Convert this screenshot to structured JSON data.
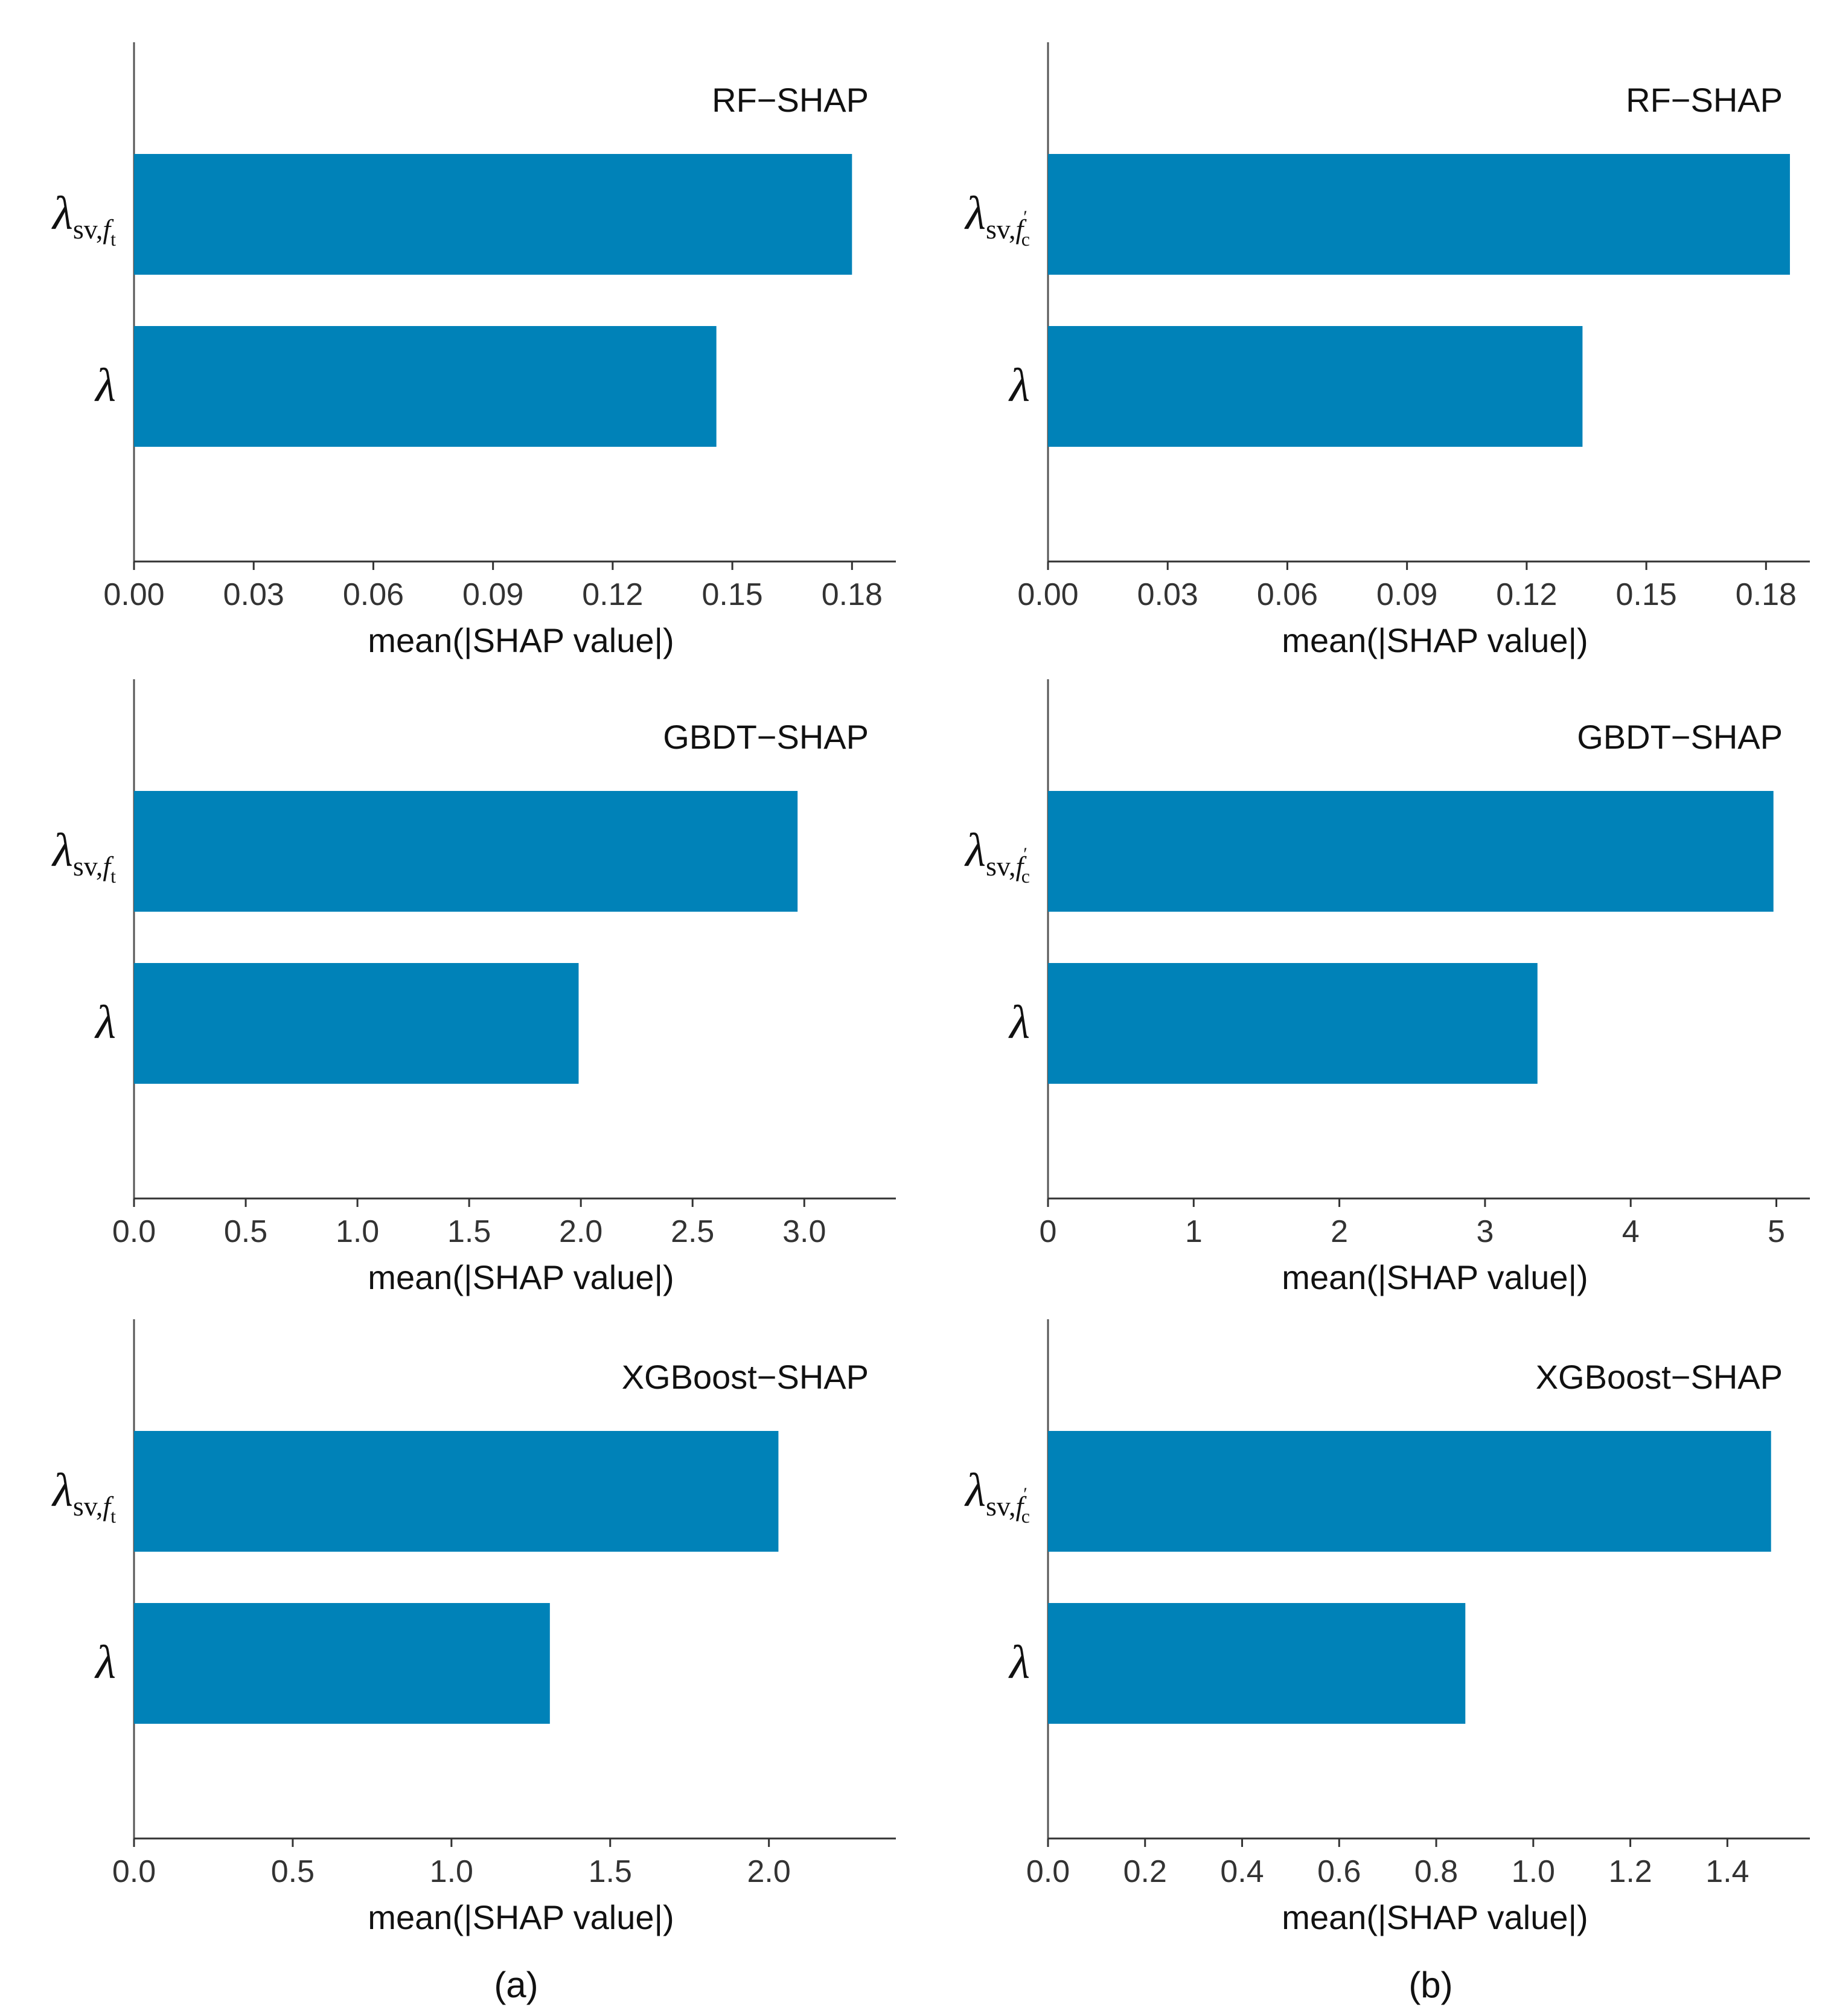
{
  "figure": {
    "panel_labels": [
      "(a)",
      "(b)"
    ],
    "bar_color": "#0082b8",
    "axis_color": "#555555"
  },
  "chart_data": [
    {
      "id": "a-rf",
      "type": "bar",
      "orientation": "horizontal",
      "title": "RF−SHAP",
      "xlabel": "mean(|SHAP value|)",
      "ylabel": "",
      "categories": [
        {
          "base": "λ",
          "sub": "sv,",
          "subsub": "f",
          "subsubsub": "t",
          "prime": ""
        },
        {
          "base": "λ",
          "sub": "",
          "subsub": "",
          "subsubsub": "",
          "prime": ""
        }
      ],
      "category_names": [
        "λ_sv,f_t",
        "λ"
      ],
      "values": [
        0.18,
        0.146
      ],
      "ticks": [
        0.0,
        0.03,
        0.06,
        0.09,
        0.12,
        0.15,
        0.18
      ],
      "tick_labels": [
        "0.00",
        "0.03",
        "0.06",
        "0.09",
        "0.12",
        "0.15",
        "0.18"
      ],
      "xlim": [
        0,
        0.191
      ]
    },
    {
      "id": "b-rf",
      "type": "bar",
      "orientation": "horizontal",
      "title": "RF−SHAP",
      "xlabel": "mean(|SHAP value|)",
      "ylabel": "",
      "categories": [
        {
          "base": "λ",
          "sub": "sv,",
          "subsub": "f",
          "subsubsub": "c",
          "prime": "′"
        },
        {
          "base": "λ",
          "sub": "",
          "subsub": "",
          "subsubsub": "",
          "prime": ""
        }
      ],
      "category_names": [
        "λ_sv,f′_c",
        "λ"
      ],
      "values": [
        0.186,
        0.134
      ],
      "ticks": [
        0.0,
        0.03,
        0.06,
        0.09,
        0.12,
        0.15,
        0.18
      ],
      "tick_labels": [
        "0.00",
        "0.03",
        "0.06",
        "0.09",
        "0.12",
        "0.15",
        "0.18"
      ],
      "xlim": [
        0,
        0.191
      ]
    },
    {
      "id": "a-gbdt",
      "type": "bar",
      "orientation": "horizontal",
      "title": "GBDT−SHAP",
      "xlabel": "mean(|SHAP value|)",
      "ylabel": "",
      "categories": [
        {
          "base": "λ",
          "sub": "sv,",
          "subsub": "f",
          "subsubsub": "t",
          "prime": ""
        },
        {
          "base": "λ",
          "sub": "",
          "subsub": "",
          "subsubsub": "",
          "prime": ""
        }
      ],
      "category_names": [
        "λ_sv,f_t",
        "λ"
      ],
      "values": [
        2.97,
        1.99
      ],
      "ticks": [
        0.0,
        0.5,
        1.0,
        1.5,
        2.0,
        2.5,
        3.0
      ],
      "tick_labels": [
        "0.0",
        "0.5",
        "1.0",
        "1.5",
        "2.0",
        "2.5",
        "3.0"
      ],
      "xlim": [
        0,
        3.41
      ]
    },
    {
      "id": "b-gbdt",
      "type": "bar",
      "orientation": "horizontal",
      "title": "GBDT−SHAP",
      "xlabel": "mean(|SHAP value|)",
      "ylabel": "",
      "categories": [
        {
          "base": "λ",
          "sub": "sv,",
          "subsub": "f",
          "subsubsub": "c",
          "prime": "′"
        },
        {
          "base": "λ",
          "sub": "",
          "subsub": "",
          "subsubsub": "",
          "prime": ""
        }
      ],
      "category_names": [
        "λ_sv,f′_c",
        "λ"
      ],
      "values": [
        4.98,
        3.36
      ],
      "ticks": [
        0,
        1,
        2,
        3,
        4,
        5
      ],
      "tick_labels": [
        "0",
        "1",
        "2",
        "3",
        "4",
        "5"
      ],
      "xlim": [
        0,
        5.23
      ]
    },
    {
      "id": "a-xgb",
      "type": "bar",
      "orientation": "horizontal",
      "title": "XGBoost−SHAP",
      "xlabel": "mean(|SHAP value|)",
      "ylabel": "",
      "categories": [
        {
          "base": "λ",
          "sub": "sv,",
          "subsub": "f",
          "subsubsub": "t",
          "prime": ""
        },
        {
          "base": "λ",
          "sub": "",
          "subsub": "",
          "subsubsub": "",
          "prime": ""
        }
      ],
      "category_names": [
        "λ_sv,f_t",
        "λ"
      ],
      "values": [
        2.03,
        1.31
      ],
      "ticks": [
        0.0,
        0.5,
        1.0,
        1.5,
        2.0
      ],
      "tick_labels": [
        "0.0",
        "0.5",
        "1.0",
        "1.5",
        "2.0"
      ],
      "xlim": [
        0,
        2.4
      ]
    },
    {
      "id": "b-xgb",
      "type": "bar",
      "orientation": "horizontal",
      "title": "XGBoost−SHAP",
      "xlabel": "mean(|SHAP value|)",
      "ylabel": "",
      "categories": [
        {
          "base": "λ",
          "sub": "sv,",
          "subsub": "f",
          "subsubsub": "c",
          "prime": "′"
        },
        {
          "base": "λ",
          "sub": "",
          "subsub": "",
          "subsubsub": "",
          "prime": ""
        }
      ],
      "category_names": [
        "λ_sv,f′_c",
        "λ"
      ],
      "values": [
        1.49,
        0.86
      ],
      "ticks": [
        0.0,
        0.2,
        0.4,
        0.6,
        0.8,
        1.0,
        1.2,
        1.4
      ],
      "tick_labels": [
        "0.0",
        "0.2",
        "0.4",
        "0.6",
        "0.8",
        "1.0",
        "1.2",
        "1.4"
      ],
      "xlim": [
        0,
        1.57
      ]
    }
  ]
}
